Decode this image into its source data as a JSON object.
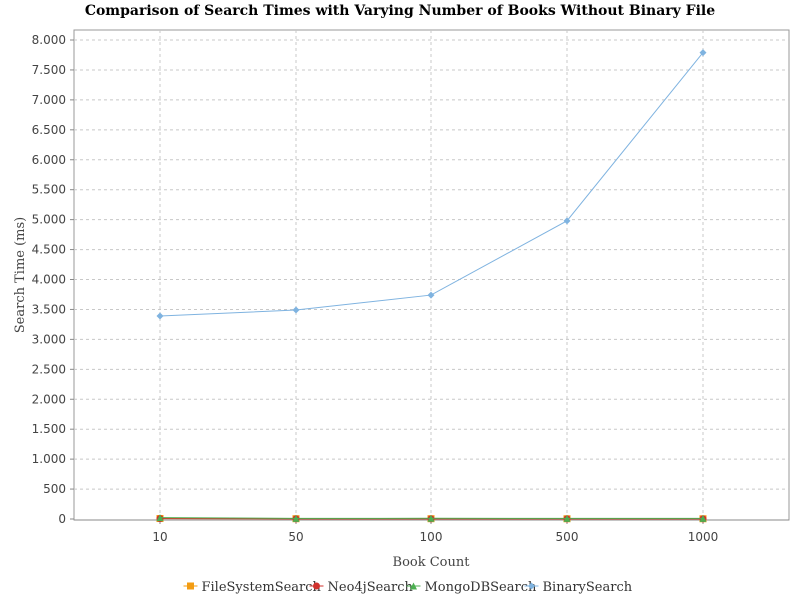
{
  "chart_data": {
    "type": "line",
    "title": "Comparison of Search Times with Varying Number of Books Without Binary File",
    "xlabel": "Book Count",
    "ylabel": "Search Time (ms)",
    "categories": [
      "10",
      "50",
      "100",
      "500",
      "1000"
    ],
    "ylim": [
      0,
      8000
    ],
    "yticks": [
      0,
      500,
      1000,
      1500,
      2000,
      2500,
      3000,
      3500,
      4000,
      4500,
      5000,
      5500,
      6000,
      6500,
      7000,
      7500,
      8000
    ],
    "ytick_labels": [
      "0",
      "500",
      "1.000",
      "1.500",
      "2.000",
      "2.500",
      "3.000",
      "3.500",
      "4.000",
      "4.500",
      "5.000",
      "5.500",
      "6.000",
      "6.500",
      "7.000",
      "7.500",
      "8.000"
    ],
    "grid": true,
    "legend_position": "bottom",
    "series": [
      {
        "name": "FileSystemSearch",
        "values": [
          8,
          5,
          5,
          4,
          4
        ],
        "color": "#f39c12",
        "marker": "square"
      },
      {
        "name": "Neo4jSearch",
        "values": [
          6,
          3,
          3,
          3,
          3
        ],
        "color": "#d0312d",
        "marker": "circle"
      },
      {
        "name": "MongoDBSearch",
        "values": [
          22,
          10,
          12,
          10,
          10
        ],
        "color": "#4caf50",
        "marker": "triangle"
      },
      {
        "name": "BinarySearch",
        "values": [
          3390,
          3490,
          3740,
          4980,
          7790
        ],
        "color": "#7fb3e0",
        "marker": "diamond"
      }
    ]
  }
}
